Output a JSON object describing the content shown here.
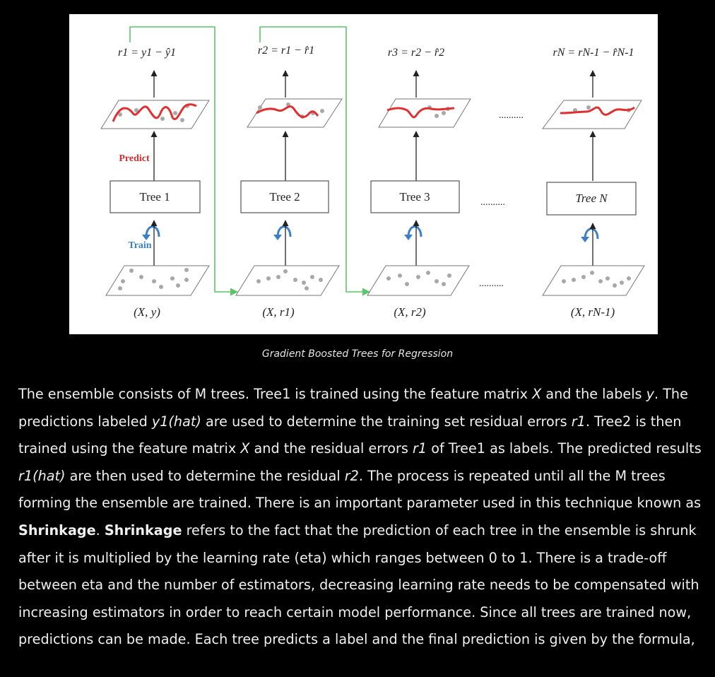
{
  "diagram": {
    "colors": {
      "background": "#000000",
      "panel": "#ffffff",
      "box_border": "#555555",
      "arrow": "#222222",
      "feedback_arrow": "#5cc46a",
      "prediction_curve": "#e03030",
      "points": "#a8a8a8",
      "predict_label": "#d03030",
      "train_label": "#3a7fc8"
    },
    "residual_formulas": [
      "r1 = y1 − ŷ1",
      "r2 = r1 − r̂1",
      "r3 = r2 − r̂2",
      "rN = rN-1 − r̂N-1"
    ],
    "trees": [
      "Tree 1",
      "Tree 2",
      "Tree 3",
      "Tree N"
    ],
    "inputs": [
      "(X, y)",
      "(X, r1)",
      "(X, r2)",
      "(X, rN-1)"
    ],
    "predict_label": "Predict",
    "train_label": "Train",
    "ellipsis": ".........."
  },
  "caption": "Gradient Boosted Trees for Regression",
  "paragraph": {
    "s1": "The ensemble consists of M trees. Tree1 is trained using the feature matrix ",
    "s1_x": "X",
    "s2": " and the labels ",
    "s2_y": "y",
    "s3": ". The predictions labeled ",
    "s3_yhat": "y1(hat)",
    "s4": " are used to determine the training set residual errors ",
    "s4_r1": "r1",
    "s5": ". Tree2 is then trained using the feature matrix ",
    "s5_x": "X",
    "s6": " and the residual errors ",
    "s6_r1": "r1",
    "s7": " of Tree1 as labels. The predicted results ",
    "s7_r1hat": "r1(hat)",
    "s8": " are then used to determine the residual ",
    "s8_r2": "r2",
    "s9": ". The process is repeated until all the M trees forming the ensemble are trained. There is an important parameter used in this technique known as ",
    "s9_bold": "Shrinkage",
    "s10": ". ",
    "s10_bold": "Shrinkage",
    "s11": " refers to the fact that the prediction of each tree in the ensemble is shrunk after it is multiplied by the learning rate (eta) which ranges between 0 to 1. There is a trade-off between eta and the number of estimators, decreasing learning rate needs to be compensated with increasing estimators in order to reach certain model performance. Since all trees are trained now, predictions can be made. Each tree predicts a label and the final prediction is given by the formula,"
  }
}
